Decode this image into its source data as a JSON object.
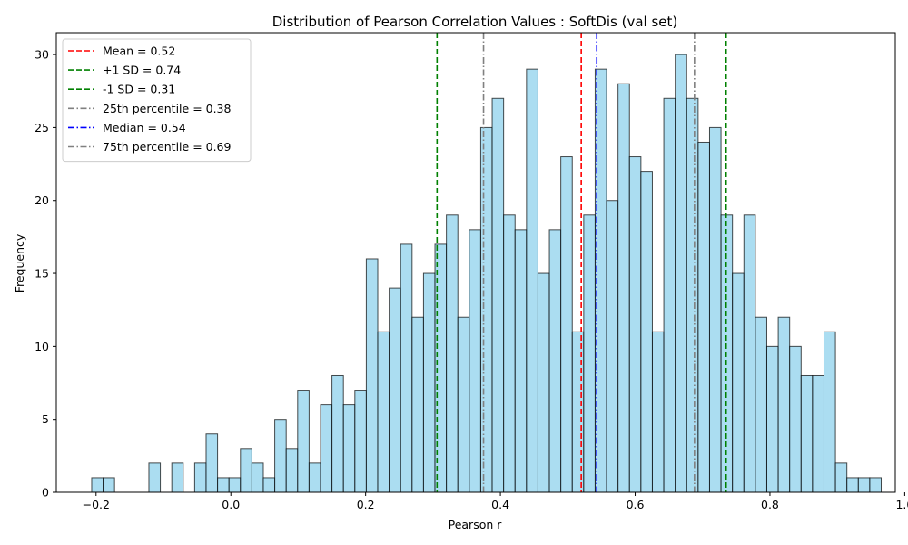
{
  "chart_data": {
    "type": "bar",
    "title": "Distribution of Pearson Correlation Values : SoftDis (val set)",
    "xlabel": "Pearson r",
    "ylabel": "Frequency",
    "xlim": [
      -0.259,
      0.986
    ],
    "ylim": [
      0,
      31.5
    ],
    "xticks": [
      "−0.2",
      "0.0",
      "0.2",
      "0.4",
      "0.6",
      "0.8",
      "1.0"
    ],
    "xtick_values": [
      -0.2,
      0.0,
      0.2,
      0.4,
      0.6,
      0.8,
      1.0
    ],
    "yticks": [
      "0",
      "5",
      "10",
      "15",
      "20",
      "25",
      "30"
    ],
    "ytick_values": [
      0,
      5,
      10,
      15,
      20,
      25,
      30
    ],
    "grid": false,
    "legend_position": "top-left",
    "bar_color": "#87CEEB",
    "bar_edge_color": "#000000",
    "bins": {
      "start": -0.2065,
      "width": 0.01698,
      "values": [
        1,
        1,
        0,
        0,
        0,
        2,
        0,
        2,
        0,
        2,
        4,
        1,
        1,
        3,
        2,
        1,
        5,
        3,
        7,
        2,
        6,
        8,
        6,
        7,
        16,
        11,
        14,
        17,
        12,
        15,
        17,
        19,
        12,
        18,
        25,
        27,
        19,
        18,
        29,
        15,
        18,
        23,
        11,
        19,
        29,
        20,
        28,
        23,
        22,
        11,
        27,
        30,
        27,
        24,
        25,
        19,
        15,
        19,
        12,
        10,
        12,
        10,
        8,
        8,
        11,
        2,
        1,
        1,
        1
      ]
    },
    "reference_lines": [
      {
        "label": "Mean = 0.52",
        "x": 0.52,
        "color": "#ff0000",
        "style": "dashed"
      },
      {
        "label": "+1 SD = 0.74",
        "x": 0.735,
        "color": "#008000",
        "style": "dashed"
      },
      {
        "label": "-1 SD = 0.31",
        "x": 0.306,
        "color": "#008000",
        "style": "dashed"
      },
      {
        "label": "25th percentile = 0.38",
        "x": 0.375,
        "color": "#808080",
        "style": "dashdot"
      },
      {
        "label": "Median = 0.54",
        "x": 0.543,
        "color": "#0000ff",
        "style": "dashdot"
      },
      {
        "label": "75th percentile = 0.69",
        "x": 0.688,
        "color": "#808080",
        "style": "dashdot"
      }
    ]
  }
}
